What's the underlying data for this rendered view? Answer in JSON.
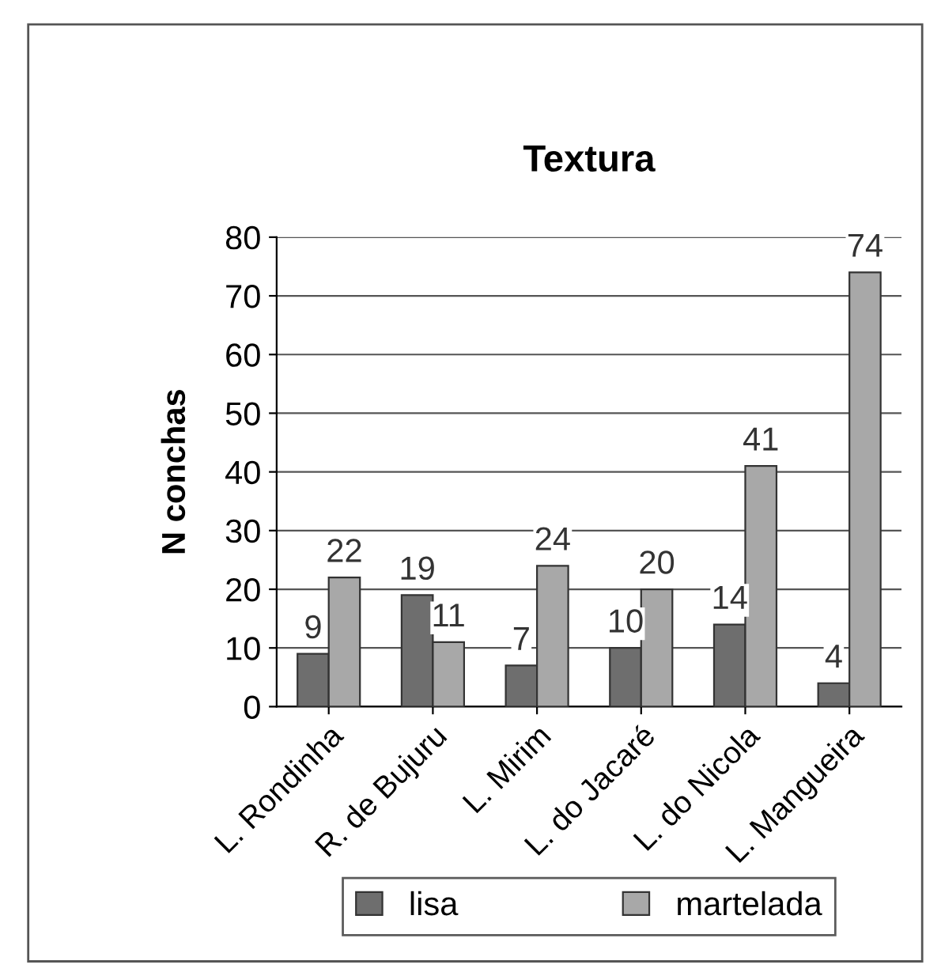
{
  "chart_data": {
    "type": "bar",
    "title": "Textura",
    "ylabel": "N conchas",
    "categories": [
      "L. Rondinha",
      "R. de Bujuru",
      "L. Mirim",
      "L. do Jacaré",
      "L. do Nicola",
      "L. Mangueira"
    ],
    "series": [
      {
        "name": "lisa",
        "color": "#6e6e6e",
        "values": [
          9,
          19,
          7,
          10,
          14,
          4
        ]
      },
      {
        "name": "martelada",
        "color": "#a8a8a8",
        "values": [
          22,
          11,
          24,
          20,
          41,
          74
        ]
      }
    ],
    "ylim": [
      0,
      80
    ],
    "yticks": [
      0,
      10,
      20,
      30,
      40,
      50,
      60,
      70,
      80
    ],
    "grid": "y",
    "legend": "bottom",
    "data_labels": true
  }
}
